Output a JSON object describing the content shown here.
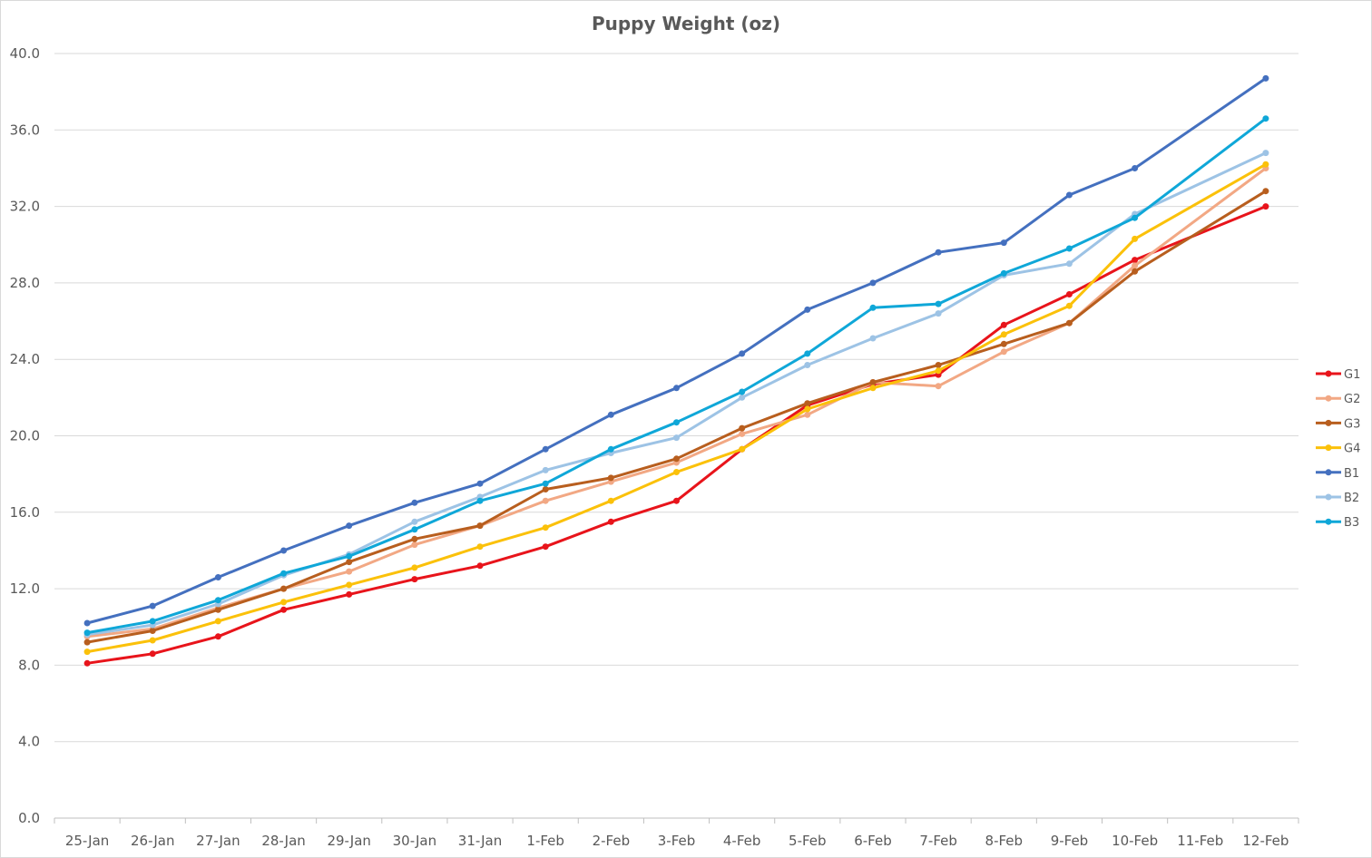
{
  "chart_data": {
    "type": "line",
    "title": "Puppy Weight (oz)",
    "xlabel": "",
    "ylabel": "",
    "categories": [
      "25-Jan",
      "26-Jan",
      "27-Jan",
      "28-Jan",
      "29-Jan",
      "30-Jan",
      "31-Jan",
      "1-Feb",
      "2-Feb",
      "3-Feb",
      "4-Feb",
      "5-Feb",
      "6-Feb",
      "7-Feb",
      "8-Feb",
      "9-Feb",
      "10-Feb",
      "11-Feb",
      "12-Feb"
    ],
    "ylim": [
      0,
      40
    ],
    "ytick_labels": [
      "0.0",
      "4.0",
      "8.0",
      "12.0",
      "16.0",
      "20.0",
      "24.0",
      "28.0",
      "32.0",
      "36.0",
      "40.0"
    ],
    "grid": "horizontal",
    "legend_position": "right",
    "series": [
      {
        "name": "G1",
        "color": "#e8141b",
        "values": [
          8.1,
          8.6,
          9.5,
          10.9,
          11.7,
          12.5,
          13.2,
          14.2,
          15.5,
          16.6,
          19.3,
          21.6,
          22.7,
          23.2,
          25.8,
          27.4,
          29.2,
          null,
          32.0
        ]
      },
      {
        "name": "G2",
        "color": "#f2a884",
        "values": [
          9.5,
          9.9,
          11.0,
          12.0,
          12.9,
          14.3,
          15.3,
          16.6,
          17.6,
          18.6,
          20.1,
          21.1,
          22.8,
          22.6,
          24.4,
          25.9,
          28.9,
          null,
          34.0
        ]
      },
      {
        "name": "G3",
        "color": "#b85e1e",
        "values": [
          9.2,
          9.8,
          10.9,
          12.0,
          13.4,
          14.6,
          15.3,
          17.2,
          17.8,
          18.8,
          20.4,
          21.7,
          22.8,
          23.7,
          24.8,
          25.9,
          28.6,
          null,
          32.8
        ]
      },
      {
        "name": "G4",
        "color": "#fbc10a",
        "values": [
          8.7,
          9.3,
          10.3,
          11.3,
          12.2,
          13.1,
          14.2,
          15.2,
          16.6,
          18.1,
          19.3,
          21.4,
          22.5,
          23.4,
          25.3,
          26.8,
          30.3,
          null,
          34.2
        ]
      },
      {
        "name": "B1",
        "color": "#4470bf",
        "values": [
          10.2,
          11.1,
          12.6,
          14.0,
          15.3,
          16.5,
          17.5,
          19.3,
          21.1,
          22.5,
          24.3,
          26.6,
          28.0,
          29.6,
          30.1,
          32.6,
          34.0,
          null,
          38.7
        ]
      },
      {
        "name": "B2",
        "color": "#9dc3e5",
        "values": [
          9.6,
          10.1,
          11.2,
          12.7,
          13.8,
          15.5,
          16.8,
          18.2,
          19.1,
          19.9,
          22.0,
          23.7,
          25.1,
          26.4,
          28.4,
          29.0,
          31.6,
          null,
          34.8
        ]
      },
      {
        "name": "B3",
        "color": "#0fa7d8",
        "values": [
          9.7,
          10.3,
          11.4,
          12.8,
          13.7,
          15.1,
          16.6,
          17.5,
          19.3,
          20.7,
          22.3,
          24.3,
          26.7,
          26.9,
          28.5,
          29.8,
          31.4,
          null,
          36.6
        ]
      }
    ]
  }
}
